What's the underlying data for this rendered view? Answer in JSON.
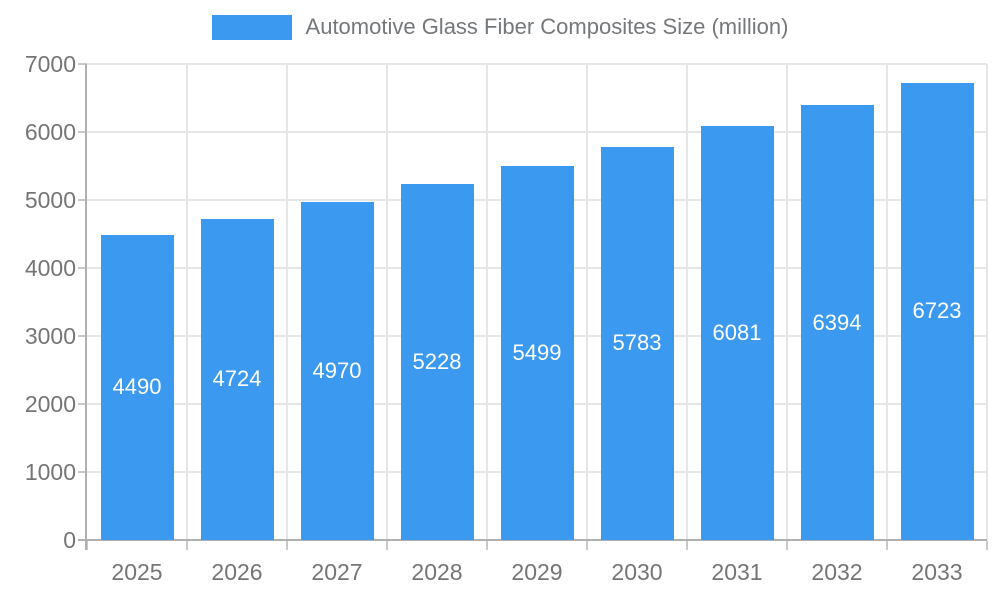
{
  "chart_data": {
    "type": "bar",
    "title": "Automotive Glass Fiber Composites Size (million)",
    "categories": [
      "2025",
      "2026",
      "2027",
      "2028",
      "2029",
      "2030",
      "2031",
      "2032",
      "2033"
    ],
    "values": [
      4490,
      4724,
      4970,
      5228,
      5499,
      5783,
      6081,
      6394,
      6723
    ],
    "xlabel": "",
    "ylabel": "",
    "ylim": [
      0,
      7000
    ],
    "ytick_step": 1000,
    "yticks": [
      0,
      1000,
      2000,
      3000,
      4000,
      5000,
      6000,
      7000
    ],
    "grid": true,
    "legend_position": "top",
    "bar_labels_shown": true,
    "colors": {
      "bar": "#3b9af0",
      "bar_label_text": "#ffffff",
      "axis_line": "#b0b0b0",
      "gridline": "#e6e6e6",
      "tick_mark": "#c9c9c9",
      "axis_text": "#757575",
      "legend_text": "#75787b",
      "background": "#ffffff"
    }
  },
  "legend": {
    "label": "Automotive Glass Fiber Composites Size (million)"
  }
}
